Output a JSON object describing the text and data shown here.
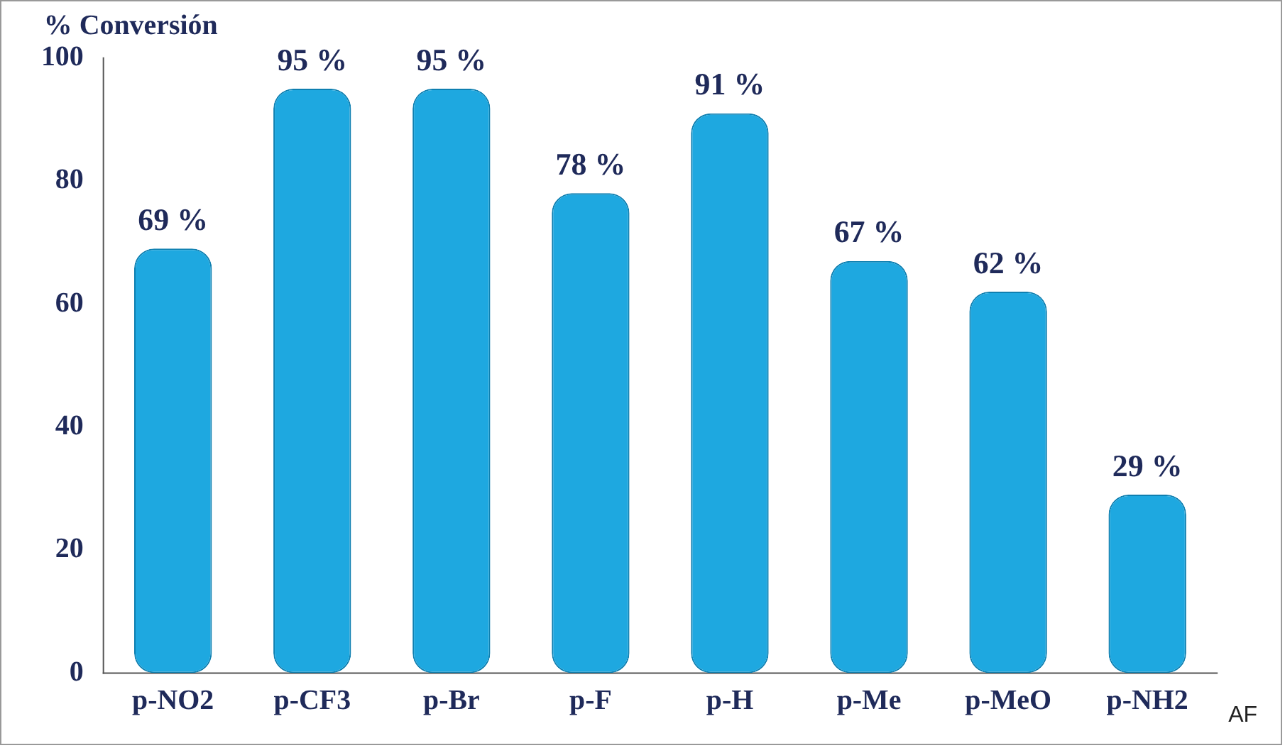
{
  "chart_data": {
    "type": "bar",
    "ylabel": "% Conversión",
    "xlabel": "AF",
    "categories": [
      "p-NO2",
      "p-CF3",
      "p-Br",
      "p-F",
      "p-H",
      "p-Me",
      "p-MeO",
      "p-NH2"
    ],
    "values": [
      69,
      95,
      95,
      78,
      91,
      67,
      62,
      29
    ],
    "value_labels": [
      "69 %",
      "95 %",
      "95 %",
      "78 %",
      "91 %",
      "67 %",
      "62 %",
      "29 %"
    ],
    "color": "#1ea8e0",
    "ylim": [
      0,
      100
    ],
    "yticks": [
      0,
      20,
      40,
      60,
      80,
      100
    ],
    "grid": false
  }
}
